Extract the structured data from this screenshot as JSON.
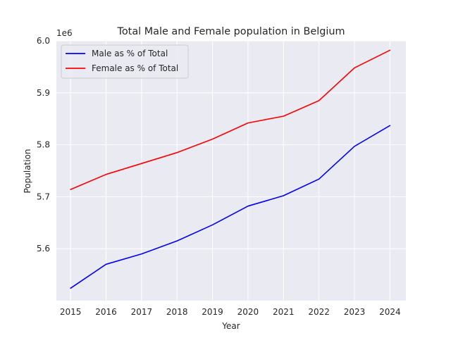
{
  "chart_data": {
    "type": "line",
    "title": "Total Male and Female population in Belgium",
    "xlabel": "Year",
    "ylabel": "Population",
    "y_offset_label": "1e6",
    "y_scale_factor": 1000000,
    "x": [
      2015,
      2016,
      2017,
      2018,
      2019,
      2020,
      2021,
      2022,
      2023,
      2024
    ],
    "xlim": [
      2014.6,
      2024.45
    ],
    "ylim": [
      5.5,
      6.0
    ],
    "yticks": [
      5.6,
      5.7,
      5.8,
      5.9,
      6.0
    ],
    "ytick_labels": [
      "5.6",
      "5.7",
      "5.8",
      "5.9",
      "6.0"
    ],
    "xtick_labels": [
      "2015",
      "2016",
      "2017",
      "2018",
      "2019",
      "2020",
      "2021",
      "2022",
      "2023",
      "2024"
    ],
    "grid": true,
    "legend_position": "top-left",
    "background_color": "#eaeaf2",
    "grid_color": "#ffffff",
    "series": [
      {
        "name": "Male as % of Total",
        "color": "#0000ff",
        "values": [
          5.524,
          5.57,
          5.59,
          5.615,
          5.646,
          5.682,
          5.702,
          5.734,
          5.797,
          5.837
        ]
      },
      {
        "name": "Female as % of Total",
        "color": "#ff0000",
        "values": [
          5.714,
          5.743,
          5.764,
          5.785,
          5.811,
          5.842,
          5.855,
          5.885,
          5.948,
          5.982
        ]
      }
    ]
  }
}
